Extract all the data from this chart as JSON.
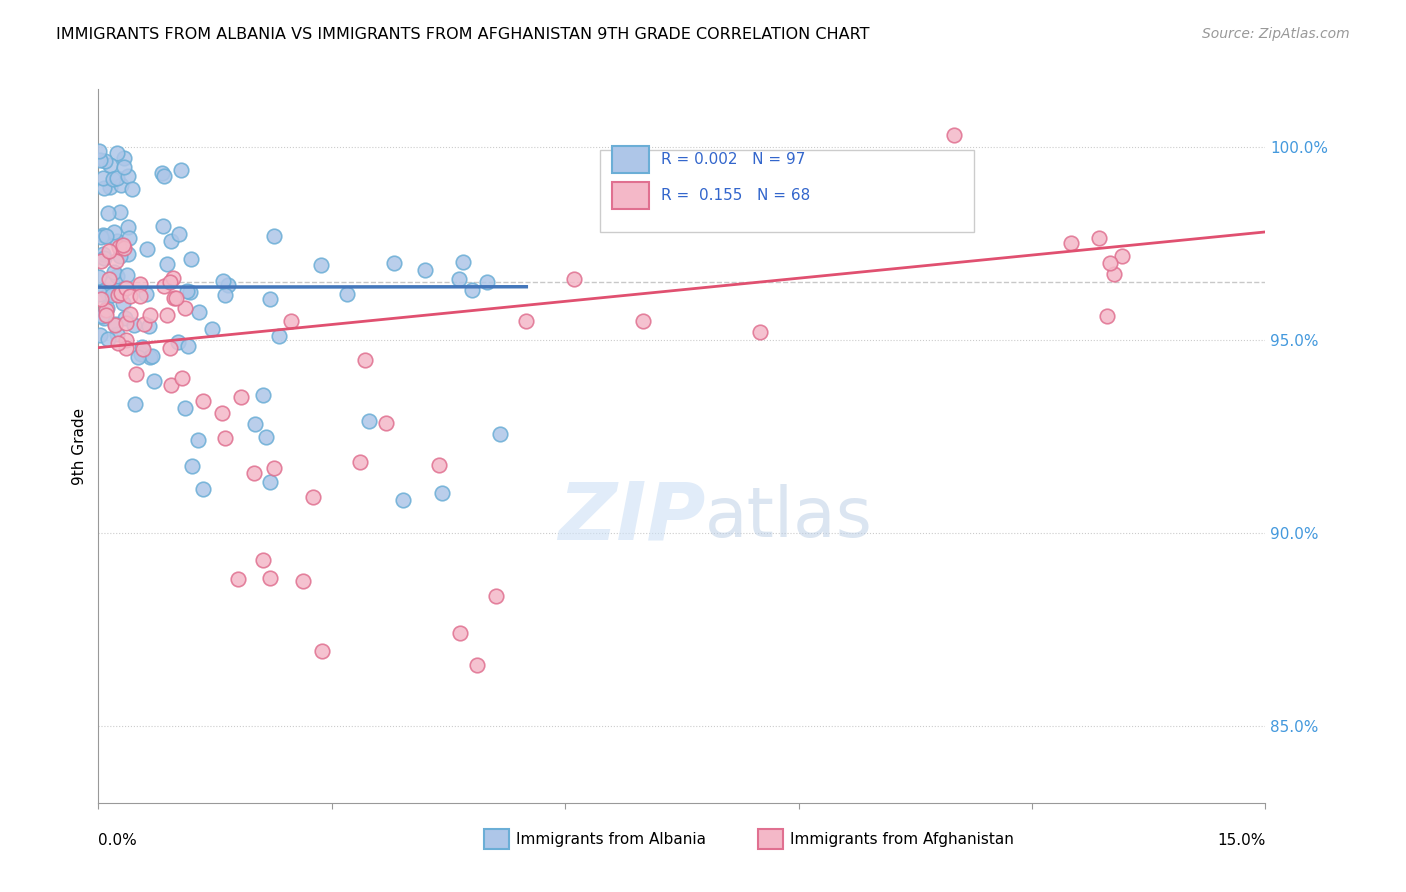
{
  "title": "IMMIGRANTS FROM ALBANIA VS IMMIGRANTS FROM AFGHANISTAN 9TH GRADE CORRELATION CHART",
  "source": "Source: ZipAtlas.com",
  "ylabel": "9th Grade",
  "xmin": 0.0,
  "xmax": 15.0,
  "ymin": 83.0,
  "ymax": 101.5,
  "yticks": [
    85.0,
    90.0,
    95.0,
    100.0
  ],
  "ytick_labels": [
    "85.0%",
    "90.0%",
    "95.0%",
    "100.0%"
  ],
  "albania_color": "#aec6e8",
  "afghanistan_color": "#f4b8c8",
  "albania_edge": "#6baed6",
  "afghanistan_edge": "#e07090",
  "albania_line_color": "#4477bb",
  "afghanistan_line_color": "#e05070",
  "legend_R_albania": "0.002",
  "legend_N_albania": "97",
  "legend_R_afghanistan": "0.155",
  "legend_N_afghanistan": "68",
  "watermark_zip": "ZIP",
  "watermark_atlas": "atlas",
  "dashed_line_y": 96.5
}
